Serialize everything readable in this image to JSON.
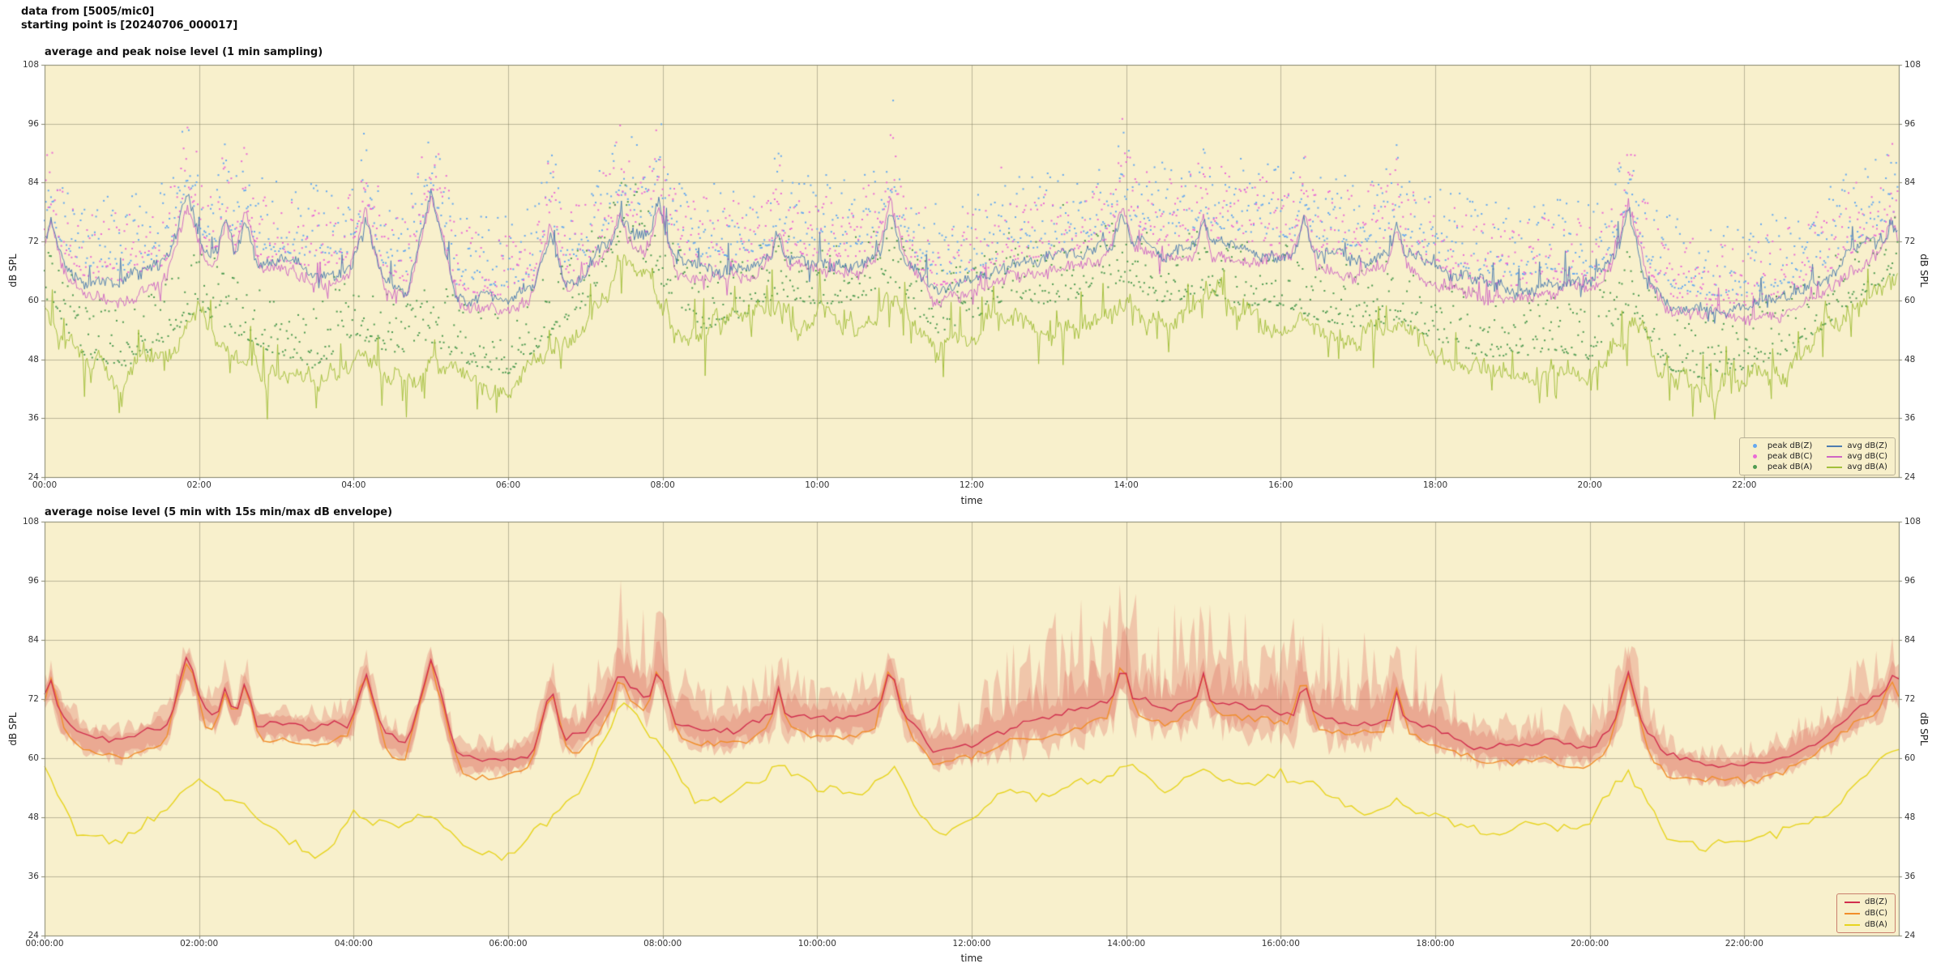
{
  "header": {
    "line1": "data from [5005/mic0]",
    "line2": "starting point is [20240706_000017]"
  },
  "style": {
    "plot_background": "#f8f0cc",
    "grid_color": "rgba(130,125,100,0.5)",
    "spine_color": "#85856d"
  },
  "keyframe_step_hours": 0.5,
  "keyframes": {
    "avgZ": [
      73,
      64,
      63,
      66,
      70,
      68,
      67,
      66,
      67,
      64,
      61,
      60,
      60,
      63,
      66,
      77,
      70,
      66,
      66,
      69,
      68,
      68,
      72,
      62,
      63,
      67,
      68,
      70,
      73,
      70,
      72,
      71,
      70,
      69,
      68,
      70,
      66,
      63,
      62,
      63,
      62,
      70,
      60,
      58,
      58,
      60,
      64,
      70,
      75
    ],
    "avgA": [
      58,
      46,
      43,
      48,
      55,
      50,
      46,
      43,
      50,
      46,
      48,
      44,
      42,
      49,
      56,
      71,
      60,
      51,
      53,
      58,
      56,
      57,
      61,
      50,
      53,
      58,
      56,
      58,
      61,
      56,
      59,
      56,
      56,
      53,
      51,
      53,
      49,
      46,
      45,
      47,
      45,
      56,
      43,
      41,
      43,
      46,
      51,
      58,
      62
    ],
    "envUp": [
      6,
      4,
      4,
      5,
      6,
      5,
      4,
      4,
      5,
      4,
      4,
      4,
      4,
      6,
      8,
      18,
      14,
      8,
      8,
      12,
      8,
      8,
      10,
      6,
      10,
      18,
      20,
      22,
      22,
      20,
      20,
      22,
      18,
      20,
      16,
      18,
      12,
      8,
      6,
      8,
      8,
      12,
      5,
      4,
      5,
      6,
      8,
      10,
      8
    ]
  },
  "spikes_avgZ": [
    [
      0.08,
      76
    ],
    [
      1.85,
      81
    ],
    [
      2.35,
      75
    ],
    [
      2.6,
      76
    ],
    [
      4.15,
      78
    ],
    [
      5.0,
      80
    ],
    [
      6.55,
      75
    ],
    [
      7.45,
      79
    ],
    [
      7.95,
      80
    ],
    [
      9.5,
      74
    ],
    [
      10.95,
      79
    ],
    [
      13.95,
      80
    ],
    [
      15.0,
      77
    ],
    [
      16.3,
      77
    ],
    [
      17.5,
      75
    ],
    [
      20.5,
      78
    ],
    [
      23.9,
      77
    ]
  ],
  "chart_data": [
    {
      "type": "line+scatter",
      "title": "average and peak noise level (1 min sampling)",
      "xlabel": "time",
      "ylabel": "dB SPL",
      "sampling": "1 min",
      "x_range_hours": [
        0,
        24
      ],
      "ylim": [
        24,
        108
      ],
      "yticks": [
        24,
        36,
        48,
        60,
        72,
        84,
        96,
        108
      ],
      "xticks_hours": [
        0,
        2,
        4,
        6,
        8,
        10,
        12,
        14,
        16,
        18,
        20,
        22
      ],
      "xtick_labels": [
        "00:00",
        "02:00",
        "04:00",
        "06:00",
        "08:00",
        "10:00",
        "12:00",
        "14:00",
        "16:00",
        "18:00",
        "20:00",
        "22:00"
      ],
      "grid": true,
      "legend_position": "lower right",
      "series": [
        {
          "name": "peak dB(Z)",
          "style": "scatter",
          "color": "#64a8f0",
          "base": "avgZ",
          "base_offset": 0,
          "offset": 3,
          "spread": 15
        },
        {
          "name": "peak dB(C)",
          "style": "scatter",
          "color": "#ea6bd6",
          "base": "avgZ",
          "base_offset": -2,
          "offset": 3,
          "spread": 14
        },
        {
          "name": "peak dB(A)",
          "style": "scatter",
          "color": "#4e9b51",
          "base": "avgA",
          "base_offset": 0,
          "offset": 3,
          "spread": 13
        },
        {
          "name": "avg dB(Z)",
          "style": "line",
          "color": "#4d7cb0",
          "base": "avgZ",
          "base_offset": 0,
          "jitter": 2.0,
          "walk": 1.0,
          "spike_prob": 0.04,
          "spike_max": 6,
          "dip_prob": 0.02,
          "dip_max": 3
        },
        {
          "name": "avg dB(C)",
          "style": "line",
          "color": "#cf66c4",
          "base": "avgZ",
          "base_offset": -2.2,
          "jitter": 2.0,
          "walk": 1.0,
          "spike_prob": 0.03,
          "spike_max": 5,
          "dip_prob": 0.02,
          "dip_max": 3
        },
        {
          "name": "avg dB(A)",
          "style": "line",
          "color": "#a2bf3a",
          "base": "avgA",
          "base_offset": 0,
          "jitter": 2.2,
          "walk": 2.5,
          "spike_prob": 0.06,
          "spike_max": 8,
          "dip_prob": 0.06,
          "dip_max": 8
        }
      ]
    },
    {
      "type": "line",
      "title": "average noise level (5 min with 15s min/max dB envelope)",
      "xlabel": "time",
      "ylabel": "dB SPL",
      "sampling": "5 min",
      "x_range_hours": [
        0,
        24
      ],
      "ylim": [
        24,
        108
      ],
      "yticks": [
        24,
        36,
        48,
        60,
        72,
        84,
        96,
        108
      ],
      "xticks_hours": [
        0,
        2,
        4,
        6,
        8,
        10,
        12,
        14,
        16,
        18,
        20,
        22
      ],
      "xtick_labels": [
        "00:00:00",
        "02:00:00",
        "04:00:00",
        "06:00:00",
        "08:00:00",
        "10:00:00",
        "12:00:00",
        "14:00:00",
        "16:00:00",
        "18:00:00",
        "20:00:00",
        "22:00:00"
      ],
      "grid": true,
      "legend_position": "lower right",
      "envelope": {
        "label": "15s min/max",
        "color": "rgba(221,104,93,0.30)",
        "base": "avgZ",
        "up_key": "envUp"
      },
      "series": [
        {
          "name": "dB(Z)",
          "style": "line",
          "color": "#d12e4e",
          "base": "avgZ",
          "base_offset": 0,
          "jitter": 1.2,
          "walk": 0.8
        },
        {
          "name": "dB(C)",
          "style": "line",
          "color": "#f18e2b",
          "base": "avgZ",
          "base_offset": -3,
          "jitter": 1.2,
          "walk": 0.8
        },
        {
          "name": "dB(A)",
          "style": "line",
          "color": "#e7d41e",
          "base": "avgA",
          "base_offset": 0,
          "jitter": 1.5,
          "walk": 2.0
        }
      ]
    }
  ]
}
